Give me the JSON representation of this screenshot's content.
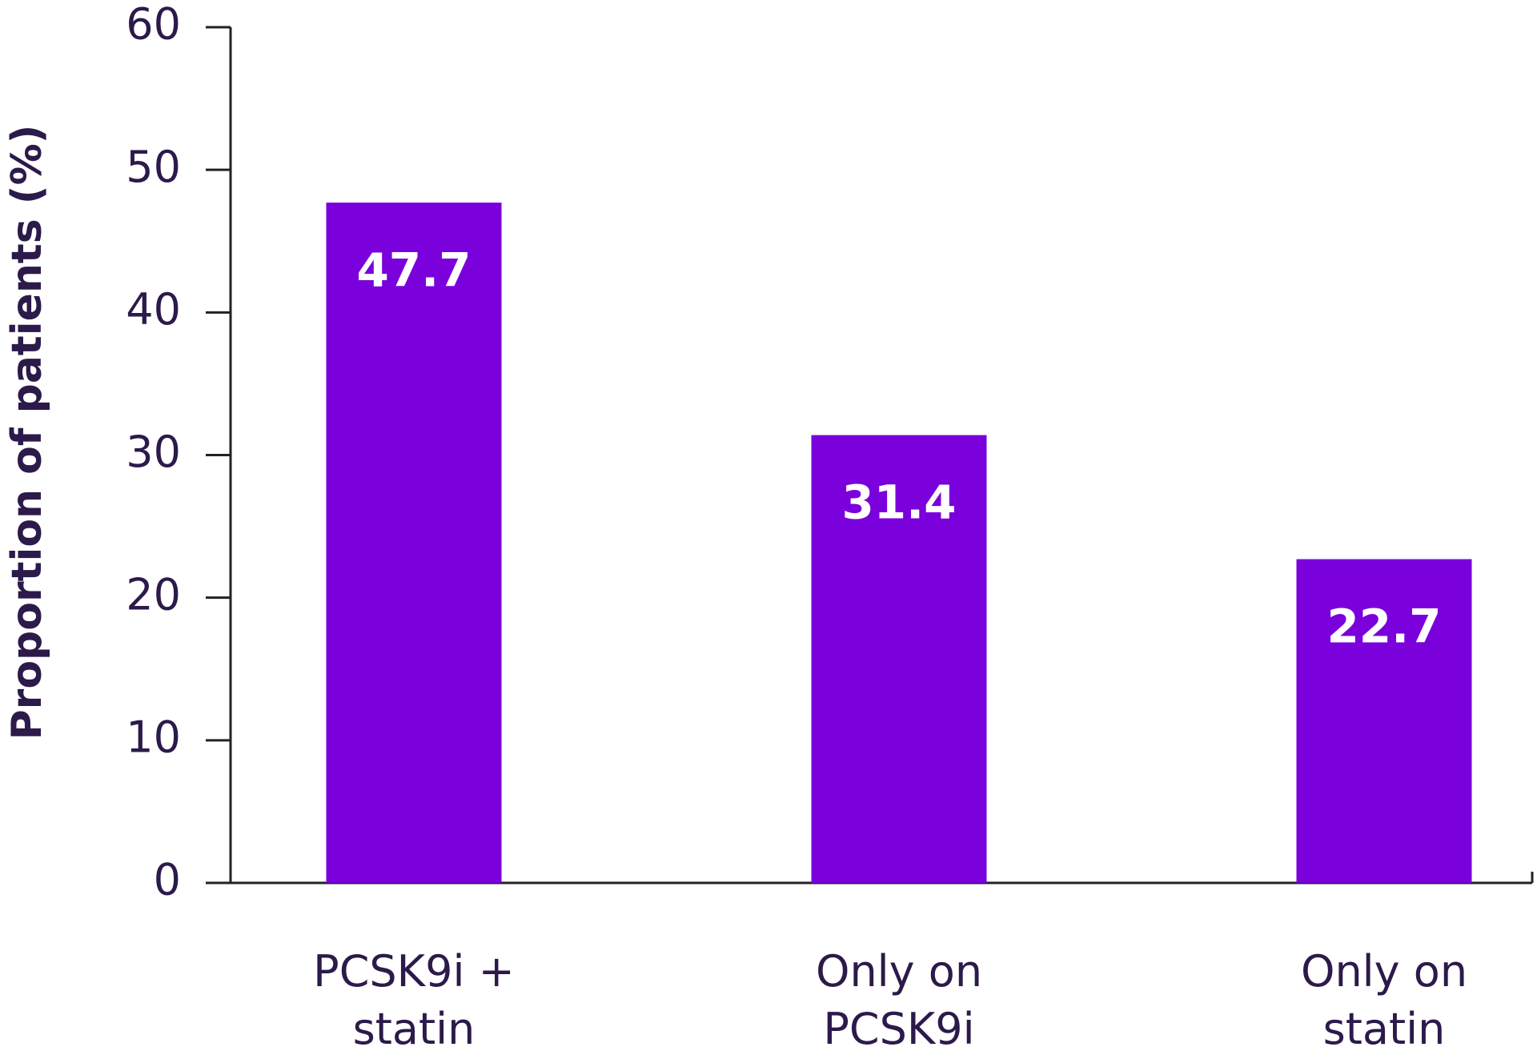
{
  "chart_data": {
    "type": "bar",
    "y_axis_label": "Proportion of patients (%)",
    "categories": [
      "PCSK9i + statin",
      "Only on PCSK9i",
      "Only on statin"
    ],
    "values": [
      47.7,
      31.4,
      22.7
    ],
    "color": "#7a00dc",
    "ylim": [
      0,
      60
    ],
    "yticks": [
      0,
      10,
      20,
      30,
      40,
      50,
      60
    ],
    "grid": false
  }
}
